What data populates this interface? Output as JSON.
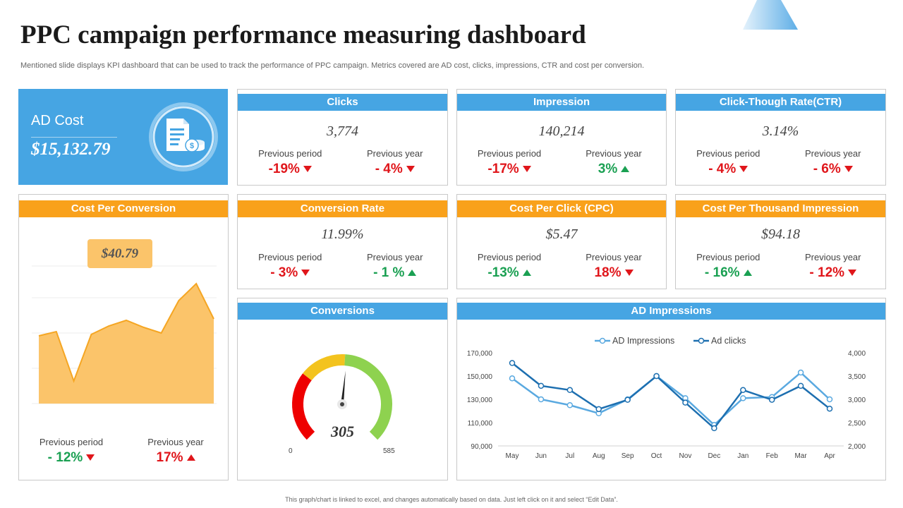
{
  "page": {
    "title": "PPC campaign performance measuring dashboard",
    "subtitle": "Mentioned slide displays KPI dashboard that can be used to track the performance of PPC campaign. Metrics covered are AD cost, clicks, impressions, CTR and cost per conversion.",
    "footer": "This graph/chart is linked to excel, and changes automatically based on data. Just left click on it and select “Edit Data”."
  },
  "colors": {
    "blue": "#46a5e3",
    "orange": "#f9a11b",
    "red": "#e0161b",
    "green": "#1aa052",
    "area": "#fbc46a"
  },
  "ad_cost": {
    "label": "AD Cost",
    "value": "$15,132.79",
    "icon": "invoice-dollar-icon"
  },
  "kpis": [
    {
      "title": "Clicks",
      "value": "3,774",
      "prev_period_label": "Previous period",
      "prev_period": "-19%",
      "prev_period_dir": "down",
      "prev_year_label": "Previous year",
      "prev_year": "- 4%",
      "prev_year_dir": "down"
    },
    {
      "title": "Impression",
      "value": "140,214",
      "prev_period_label": "Previous period",
      "prev_period": "-17%",
      "prev_period_dir": "down",
      "prev_year_label": "Previous year",
      "prev_year": "3%",
      "prev_year_dir": "up"
    },
    {
      "title": "Click-Though Rate(CTR)",
      "value": "3.14%",
      "prev_period_label": "Previous period",
      "prev_period": "- 4%",
      "prev_period_dir": "down",
      "prev_year_label": "Previous year",
      "prev_year": "- 6%",
      "prev_year_dir": "down"
    },
    {
      "title": "Conversion Rate",
      "value": "11.99%",
      "prev_period_label": "Previous period",
      "prev_period": "- 3%",
      "prev_period_dir": "down",
      "prev_year_label": "Previous year",
      "prev_year": "- 1 %",
      "prev_year_dir": "up"
    },
    {
      "title": "Cost Per Click (CPC)",
      "value": "$5.47",
      "prev_period_label": "Previous period",
      "prev_period": "-13%",
      "prev_period_dir": "up",
      "prev_year_label": "Previous year",
      "prev_year": "18%",
      "prev_year_dir": "down"
    },
    {
      "title": "Cost Per Thousand Impression",
      "value": "$94.18",
      "prev_period_label": "Previous period",
      "prev_period": "- 16%",
      "prev_period_dir": "up",
      "prev_year_label": "Previous year",
      "prev_year": "- 12%",
      "prev_year_dir": "down"
    }
  ],
  "cost_per_conversion": {
    "title": "Cost Per Conversion",
    "value": "$40.79",
    "prev_period_label": "Previous period",
    "prev_period": "- 12%",
    "prev_period_dir": "down",
    "prev_year_label": "Previous year",
    "prev_year": "17%",
    "prev_year_dir": "up"
  },
  "conversions": {
    "title": "Conversions",
    "value": "305",
    "min": "0",
    "max": "585"
  },
  "ad_impressions": {
    "title": "AD Impressions"
  },
  "chart_data": [
    {
      "type": "area",
      "values": [
        48,
        51,
        16,
        49,
        55,
        59,
        54,
        50,
        73,
        85,
        60
      ],
      "ylim": [
        0,
        100
      ],
      "color": "#fbc46a"
    },
    {
      "type": "gauge",
      "value": 305,
      "min": 0,
      "max": 585,
      "bands": [
        {
          "from": 0,
          "to": 180,
          "color": "#ee0000"
        },
        {
          "from": 180,
          "to": 300,
          "color": "#f3c31e"
        },
        {
          "from": 300,
          "to": 585,
          "color": "#8ed24f"
        }
      ]
    },
    {
      "type": "line",
      "categories": [
        "May",
        "Jun",
        "Jul",
        "Aug",
        "Sep",
        "Oct",
        "Nov",
        "Dec",
        "Jan",
        "Feb",
        "Mar",
        "Apr"
      ],
      "series": [
        {
          "name": "AD Impressions",
          "axis": "left",
          "color": "#5aa9e0",
          "values": [
            148000,
            130000,
            125000,
            118000,
            130000,
            150000,
            131000,
            108000,
            131000,
            132000,
            153000,
            130000
          ]
        },
        {
          "name": "Ad clicks",
          "axis": "right",
          "color": "#1d6fb0",
          "values": [
            3780,
            3290,
            3200,
            2790,
            2990,
            3500,
            2930,
            2380,
            3200,
            2990,
            3290,
            2800
          ]
        }
      ],
      "ylim_left": [
        90000,
        170000
      ],
      "ylim_right": [
        2000,
        4000
      ],
      "left_ticks": [
        "170,000",
        "150,000",
        "130,000",
        "110,000",
        "90,000"
      ],
      "right_ticks": [
        "4,000",
        "3,500",
        "3,000",
        "2,500",
        "2,000"
      ],
      "legend_position": "top-center"
    }
  ]
}
